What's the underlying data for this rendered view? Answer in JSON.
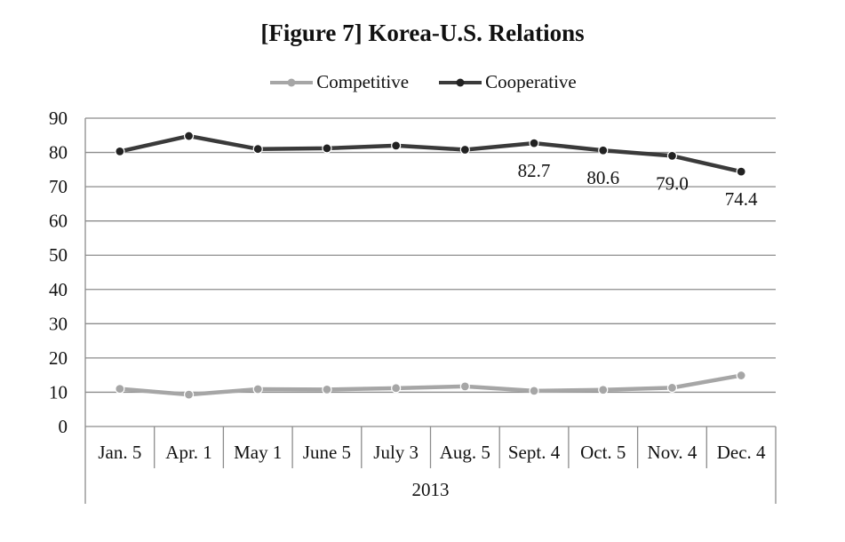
{
  "chart_data": {
    "type": "line",
    "title": "[Figure 7] Korea-U.S. Relations",
    "categories": [
      "Jan. 5",
      "Apr. 1",
      "May 1",
      "June 5",
      "July 3",
      "Aug. 5",
      "Sept. 4",
      "Oct. 5",
      "Nov. 4",
      "Dec. 4"
    ],
    "group_label": "2013",
    "xlabel": "",
    "ylabel": "",
    "ylim": [
      0,
      90
    ],
    "yticks": [
      "0",
      "10",
      "20",
      "30",
      "40",
      "50",
      "60",
      "70",
      "80",
      "90"
    ],
    "grid": true,
    "legend_position": "top",
    "series": [
      {
        "name": "Competitive",
        "color": "#a6a6a6",
        "values": [
          11.0,
          9.3,
          10.9,
          10.8,
          11.2,
          11.7,
          10.4,
          10.7,
          11.3,
          14.9
        ],
        "labels": [
          "",
          "",
          "",
          "",
          "",
          "",
          "",
          "",
          "",
          ""
        ]
      },
      {
        "name": "Cooperative",
        "color": "#3a3a3a",
        "values": [
          80.3,
          84.8,
          81.0,
          81.2,
          82.0,
          80.8,
          82.7,
          80.6,
          79.0,
          74.4
        ],
        "labels": [
          "",
          "",
          "",
          "",
          "",
          "",
          "82.7",
          "80.6",
          "79.0",
          "74.4"
        ]
      }
    ]
  }
}
